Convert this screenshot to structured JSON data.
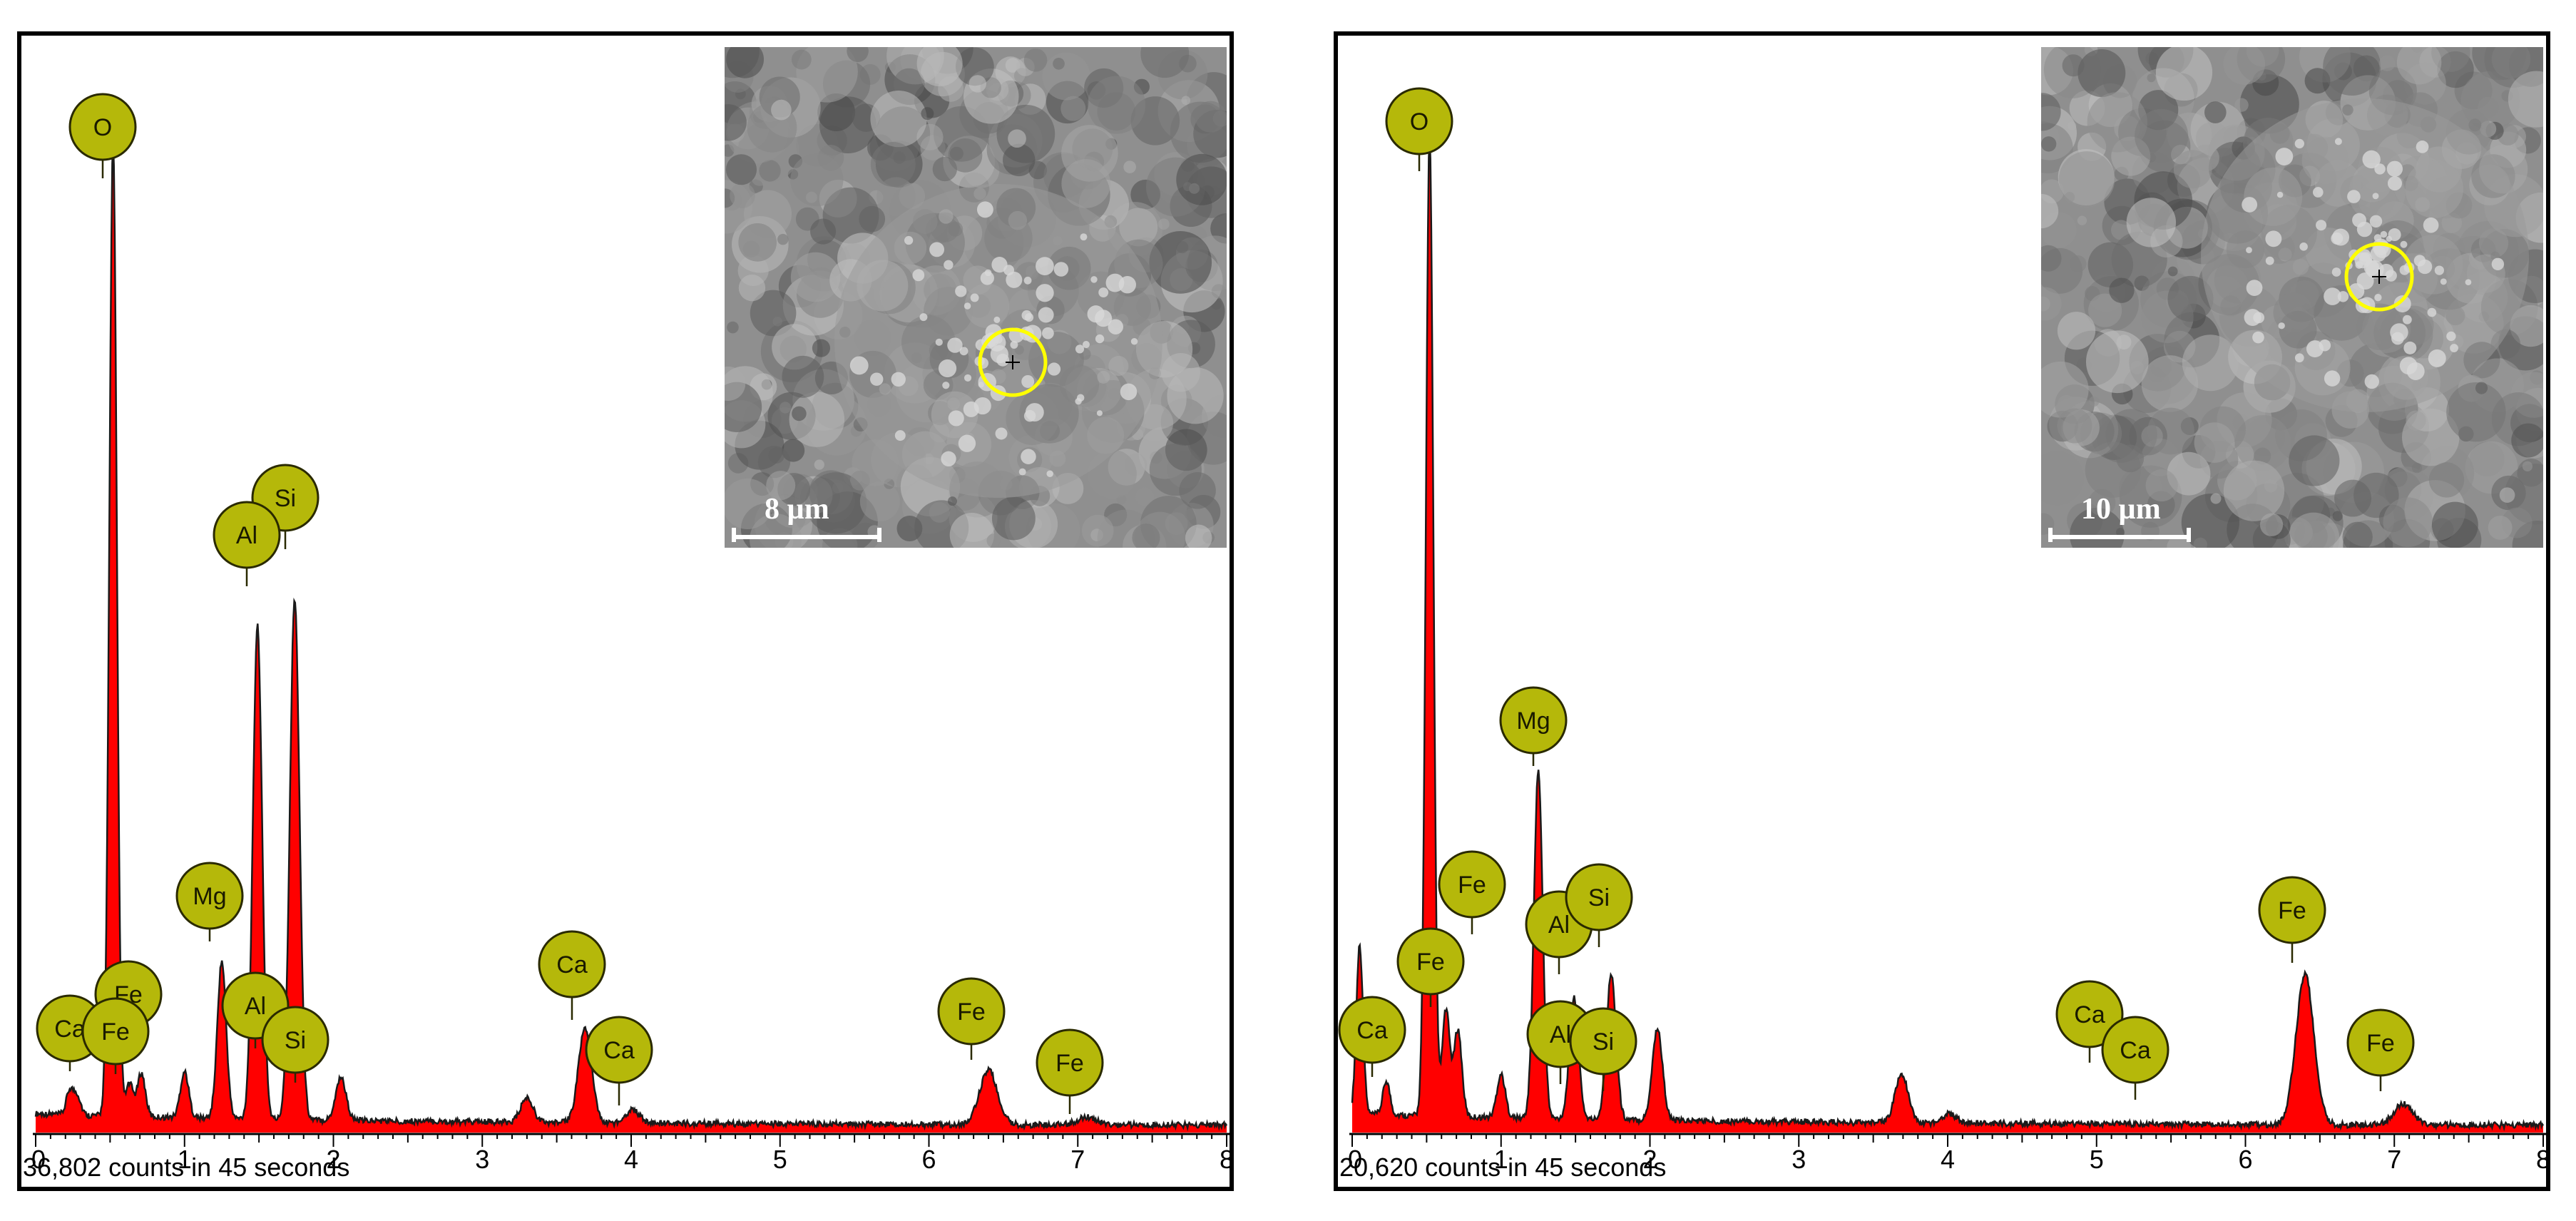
{
  "chart_data": [
    {
      "type": "line",
      "xlim": [
        0,
        8
      ],
      "ylim": [
        0,
        36802
      ],
      "x_ticks": [
        "0",
        "1",
        "2",
        "3",
        "4",
        "5",
        "6",
        "7",
        "8"
      ],
      "counts_label": "36,802 counts in 45 seconds",
      "peaks": [
        {
          "x": 0.23,
          "y": 900
        },
        {
          "x": 0.28,
          "y": 700
        },
        {
          "x": 0.52,
          "y": 36000
        },
        {
          "x": 0.63,
          "y": 1200
        },
        {
          "x": 0.71,
          "y": 1600
        },
        {
          "x": 1.0,
          "y": 1700
        },
        {
          "x": 1.25,
          "y": 5800
        },
        {
          "x": 1.49,
          "y": 18200
        },
        {
          "x": 1.74,
          "y": 19200
        },
        {
          "x": 2.05,
          "y": 1600
        },
        {
          "x": 3.3,
          "y": 900
        },
        {
          "x": 3.69,
          "y": 3500
        },
        {
          "x": 4.01,
          "y": 500
        },
        {
          "x": 6.4,
          "y": 2000
        },
        {
          "x": 7.06,
          "y": 280
        }
      ],
      "labels": [
        {
          "element": "O",
          "x": 0.52
        },
        {
          "element": "Si",
          "x": 1.74
        },
        {
          "element": "Al",
          "x": 1.49
        },
        {
          "element": "Mg",
          "x": 1.25
        },
        {
          "element": "Ca",
          "x": 3.69
        },
        {
          "element": "Ca",
          "x": 4.01
        },
        {
          "element": "Ca",
          "x": 0.23
        },
        {
          "element": "Fe",
          "x": 0.71
        },
        {
          "element": "Fe",
          "x": 0.63
        },
        {
          "element": "Al",
          "x": 1.49
        },
        {
          "element": "Si",
          "x": 1.74
        },
        {
          "element": "Fe",
          "x": 6.4
        },
        {
          "element": "Fe",
          "x": 7.06
        }
      ],
      "inset": {
        "scale_label": "8 µm"
      }
    },
    {
      "type": "line",
      "xlim": [
        0,
        8
      ],
      "ylim": [
        0,
        20620
      ],
      "x_ticks": [
        "0",
        "1",
        "2",
        "3",
        "4",
        "5",
        "6",
        "7",
        "8"
      ],
      "counts_label": "20,620 counts in 45 seconds",
      "peaks": [
        {
          "x": 0.05,
          "y": 3500
        },
        {
          "x": 0.23,
          "y": 700
        },
        {
          "x": 0.52,
          "y": 20300
        },
        {
          "x": 0.63,
          "y": 2200
        },
        {
          "x": 0.71,
          "y": 1800
        },
        {
          "x": 1.0,
          "y": 900
        },
        {
          "x": 1.25,
          "y": 7200
        },
        {
          "x": 1.49,
          "y": 2500
        },
        {
          "x": 1.74,
          "y": 3000
        },
        {
          "x": 2.05,
          "y": 1900
        },
        {
          "x": 3.69,
          "y": 1000
        },
        {
          "x": 4.01,
          "y": 200
        },
        {
          "x": 6.4,
          "y": 3100
        },
        {
          "x": 7.06,
          "y": 430
        }
      ],
      "labels": [
        {
          "element": "O",
          "x": 0.52
        },
        {
          "element": "Mg",
          "x": 1.25
        },
        {
          "element": "Fe",
          "x": 0.71
        },
        {
          "element": "Fe",
          "x": 0.63
        },
        {
          "element": "Al",
          "x": 1.49
        },
        {
          "element": "Si",
          "x": 1.74
        },
        {
          "element": "Ca",
          "x": 0.23
        },
        {
          "element": "Al",
          "x": 1.49
        },
        {
          "element": "Si",
          "x": 1.74
        },
        {
          "element": "Ca",
          "x": 3.69
        },
        {
          "element": "Ca",
          "x": 4.01
        },
        {
          "element": "Fe",
          "x": 6.4
        },
        {
          "element": "Fe",
          "x": 7.06
        }
      ],
      "inset": {
        "scale_label": "10 µm"
      }
    }
  ],
  "colors": {
    "spectrum_fill": "#ff0000",
    "spectrum_line": "#1a1a1a",
    "label_fill": "#b5b80a",
    "label_stroke": "#2a2a00",
    "marker_circle": "#ffff00",
    "sem_background": "#8f8f8f"
  }
}
